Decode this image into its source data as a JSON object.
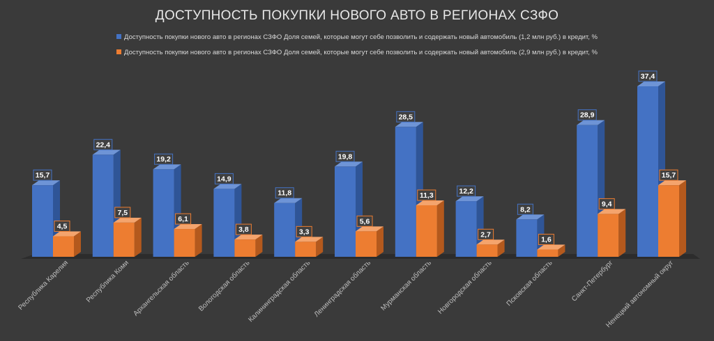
{
  "chart_data": {
    "type": "bar",
    "title": "ДОСТУПНОСТЬ ПОКУПКИ НОВОГО АВТО В РЕГИОНАХ СЗФО",
    "categories": [
      "Республика Карелия",
      "Республика Коми",
      "Архангельская область",
      "Вологодская область",
      "Калининградская область",
      "Ленинградская область",
      "Мурманская область",
      "Новгородская область",
      "Псковская область",
      "Санкт-Петербург",
      "Ненецкий автономный округ"
    ],
    "series": [
      {
        "name": "Доступность покупки нового авто в регионах СЗФО Доля семей, которые могут себе позволить и содержать новый автомобиль (1,2 млн руб.) в кредит, %",
        "values": [
          15.7,
          22.4,
          19.2,
          14.9,
          11.8,
          19.8,
          28.5,
          12.2,
          8.2,
          28.9,
          37.4
        ],
        "labels": [
          "15,7",
          "22,4",
          "19,2",
          "14,9",
          "11,8",
          "19,8",
          "28,5",
          "12,2",
          "8,2",
          "28,9",
          "37,4"
        ]
      },
      {
        "name": "Доступность покупки нового авто в регионах СЗФО Доля семей, которые могут себе позволить и содержать новый автомобиль (2,9 млн руб.) в кредит, %",
        "values": [
          4.5,
          7.5,
          6.1,
          3.8,
          3.3,
          5.6,
          11.3,
          2.7,
          1.6,
          9.4,
          15.7
        ],
        "labels": [
          "4,5",
          "7,5",
          "6,1",
          "3,8",
          "3,3",
          "5,6",
          "11,3",
          "2,7",
          "1,6",
          "9,4",
          "15,7"
        ]
      }
    ],
    "xlabel": "",
    "ylabel": "",
    "ylim": [
      0,
      40
    ],
    "grid": false,
    "legend_position": "top",
    "colors": {
      "series1": "#4472c4",
      "series2": "#ed7d31",
      "background": "#3a3a3a",
      "text": "#d9d9d9"
    }
  }
}
